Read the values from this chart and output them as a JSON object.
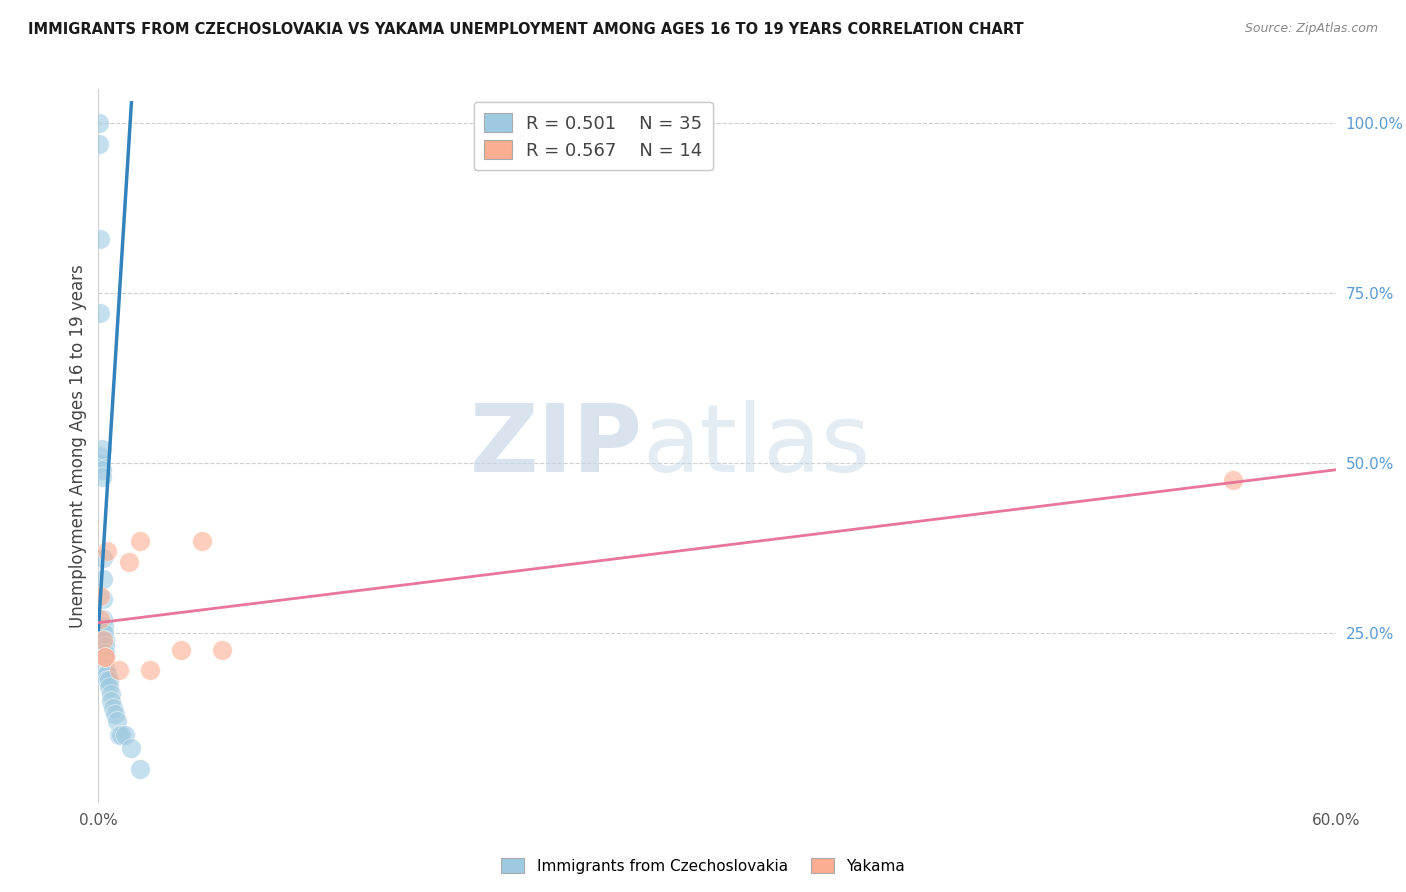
{
  "title": "IMMIGRANTS FROM CZECHOSLOVAKIA VS YAKAMA UNEMPLOYMENT AMONG AGES 16 TO 19 YEARS CORRELATION CHART",
  "source": "Source: ZipAtlas.com",
  "ylabel": "Unemployment Among Ages 16 to 19 years",
  "xlim": [
    0.0,
    0.6
  ],
  "ylim": [
    0.0,
    1.05
  ],
  "xtick_positions": [
    0.0,
    0.1,
    0.2,
    0.3,
    0.4,
    0.5,
    0.6
  ],
  "xticklabels": [
    "0.0%",
    "",
    "",
    "",
    "",
    "",
    "60.0%"
  ],
  "yticks_right": [
    0.25,
    0.5,
    0.75,
    1.0
  ],
  "ytick_right_labels": [
    "25.0%",
    "50.0%",
    "75.0%",
    "100.0%"
  ],
  "blue_color": "#9ecae1",
  "pink_color": "#fcae91",
  "blue_line_color": "#3182bd",
  "pink_line_color": "#e8769a",
  "legend_R1": "R = 0.501",
  "legend_N1": "N = 35",
  "legend_R2": "R = 0.567",
  "legend_N2": "N = 14",
  "watermark_zip": "ZIP",
  "watermark_atlas": "atlas",
  "blue_scatter_x": [
    0.0005,
    0.0005,
    0.001,
    0.001,
    0.001,
    0.001,
    0.0015,
    0.0015,
    0.0015,
    0.002,
    0.002,
    0.002,
    0.002,
    0.002,
    0.0025,
    0.0025,
    0.003,
    0.003,
    0.003,
    0.003,
    0.0035,
    0.004,
    0.004,
    0.005,
    0.005,
    0.006,
    0.006,
    0.007,
    0.008,
    0.009,
    0.01,
    0.011,
    0.013,
    0.016,
    0.02
  ],
  "blue_scatter_y": [
    1.0,
    0.97,
    0.83,
    0.72,
    0.51,
    0.5,
    0.52,
    0.49,
    0.48,
    0.36,
    0.33,
    0.3,
    0.27,
    0.25,
    0.26,
    0.25,
    0.24,
    0.23,
    0.22,
    0.2,
    0.19,
    0.19,
    0.18,
    0.18,
    0.17,
    0.16,
    0.15,
    0.14,
    0.13,
    0.12,
    0.1,
    0.1,
    0.1,
    0.08,
    0.05
  ],
  "pink_scatter_x": [
    0.001,
    0.001,
    0.002,
    0.003,
    0.003,
    0.004,
    0.01,
    0.015,
    0.02,
    0.025,
    0.04,
    0.05,
    0.06,
    0.55
  ],
  "pink_scatter_y": [
    0.305,
    0.27,
    0.24,
    0.215,
    0.215,
    0.37,
    0.195,
    0.355,
    0.385,
    0.195,
    0.225,
    0.385,
    0.225,
    0.475
  ],
  "blue_line_x": [
    0.0,
    0.016
  ],
  "blue_line_y": [
    0.255,
    1.03
  ],
  "pink_line_x": [
    0.0,
    0.6
  ],
  "pink_line_y": [
    0.265,
    0.49
  ]
}
